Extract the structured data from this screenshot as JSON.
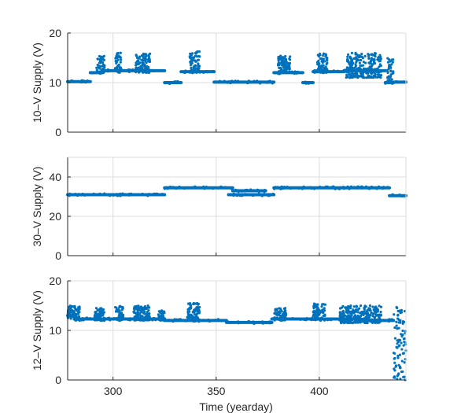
{
  "chart_data": [
    {
      "type": "scatter",
      "ylabel": "10–V Supply (V)",
      "xlim": [
        278,
        442
      ],
      "ylim": [
        0,
        20
      ],
      "yticks": [
        0,
        10,
        20
      ],
      "xticks": [
        300,
        350,
        400
      ],
      "show_xtick_labels": false,
      "color": "#0072BD",
      "segments": [
        {
          "x": [
            278,
            289
          ],
          "y": 10.2
        },
        {
          "x": [
            289,
            295
          ],
          "y": 12.0
        },
        {
          "x": [
            295,
            325
          ],
          "y": 12.4
        },
        {
          "x": [
            325,
            333
          ],
          "y": 10.0
        },
        {
          "x": [
            333,
            349
          ],
          "y": 12.2
        },
        {
          "x": [
            349,
            378
          ],
          "y": 10.1
        },
        {
          "x": [
            378,
            392
          ],
          "y": 12.0
        },
        {
          "x": [
            392,
            397
          ],
          "y": 10.0
        },
        {
          "x": [
            397,
            412
          ],
          "y": 12.2
        },
        {
          "x": [
            412,
            432
          ],
          "y": 12.4
        },
        {
          "x": [
            432,
            436
          ],
          "y": 10.0
        },
        {
          "x": [
            436,
            442
          ],
          "y": 10.1
        }
      ],
      "bursts": [
        {
          "x": [
            292,
            296
          ],
          "ymin": 12,
          "ymax": 15.5
        },
        {
          "x": [
            301,
            304
          ],
          "ymin": 12,
          "ymax": 16
        },
        {
          "x": [
            311,
            318
          ],
          "ymin": 12,
          "ymax": 16
        },
        {
          "x": [
            337,
            342
          ],
          "ymin": 12,
          "ymax": 16.5
        },
        {
          "x": [
            380,
            386
          ],
          "ymin": 12,
          "ymax": 15.5
        },
        {
          "x": [
            399,
            404
          ],
          "ymin": 12,
          "ymax": 16
        },
        {
          "x": [
            413,
            430
          ],
          "ymin": 11,
          "ymax": 16
        },
        {
          "x": [
            433,
            436
          ],
          "ymin": 10,
          "ymax": 15
        }
      ]
    },
    {
      "type": "scatter",
      "ylabel": "30–V Supply (V)",
      "xlim": [
        278,
        442
      ],
      "ylim": [
        0,
        50
      ],
      "yticks": [
        0,
        20,
        40
      ],
      "xticks": [
        300,
        350,
        400
      ],
      "show_xtick_labels": false,
      "color": "#0072BD",
      "segments": [
        {
          "x": [
            278,
            325
          ],
          "y": 31.0
        },
        {
          "x": [
            325,
            358
          ],
          "y": 34.5
        },
        {
          "x": [
            356,
            378
          ],
          "y": 31.0
        },
        {
          "x": [
            358,
            374
          ],
          "y": 33.0
        },
        {
          "x": [
            378,
            434
          ],
          "y": 34.5
        },
        {
          "x": [
            434,
            442
          ],
          "y": 30.5
        }
      ],
      "bursts": []
    },
    {
      "type": "scatter",
      "ylabel": "12–V Supply (V)",
      "xlabel": "Time (yearday)",
      "xlim": [
        278,
        442
      ],
      "ylim": [
        0,
        20
      ],
      "yticks": [
        0,
        10,
        20
      ],
      "xticks": [
        300,
        350,
        400
      ],
      "xtick_labels": [
        "300",
        "350",
        "400"
      ],
      "show_xtick_labels": true,
      "color": "#0072BD",
      "segments": [
        {
          "x": [
            278,
            282
          ],
          "y": 13.0
        },
        {
          "x": [
            282,
            325
          ],
          "y": 12.3
        },
        {
          "x": [
            325,
            355
          ],
          "y": 12.0
        },
        {
          "x": [
            355,
            377
          ],
          "y": 11.6
        },
        {
          "x": [
            377,
            420
          ],
          "y": 12.3
        },
        {
          "x": [
            420,
            436
          ],
          "y": 12.0
        }
      ],
      "bursts": [
        {
          "x": [
            278,
            284
          ],
          "ymin": 12,
          "ymax": 15
        },
        {
          "x": [
            291,
            296
          ],
          "ymin": 12,
          "ymax": 14.5
        },
        {
          "x": [
            301,
            305
          ],
          "ymin": 12,
          "ymax": 15
        },
        {
          "x": [
            310,
            318
          ],
          "ymin": 12,
          "ymax": 15
        },
        {
          "x": [
            322,
            325
          ],
          "ymin": 12,
          "ymax": 14
        },
        {
          "x": [
            336,
            342
          ],
          "ymin": 12,
          "ymax": 15.5
        },
        {
          "x": [
            378,
            384
          ],
          "ymin": 12,
          "ymax": 14.5
        },
        {
          "x": [
            397,
            403
          ],
          "ymin": 12,
          "ymax": 15.5
        },
        {
          "x": [
            410,
            430
          ],
          "ymin": 11.5,
          "ymax": 15
        },
        {
          "x": [
            436,
            442
          ],
          "ymin": 0,
          "ymax": 15
        }
      ]
    }
  ]
}
